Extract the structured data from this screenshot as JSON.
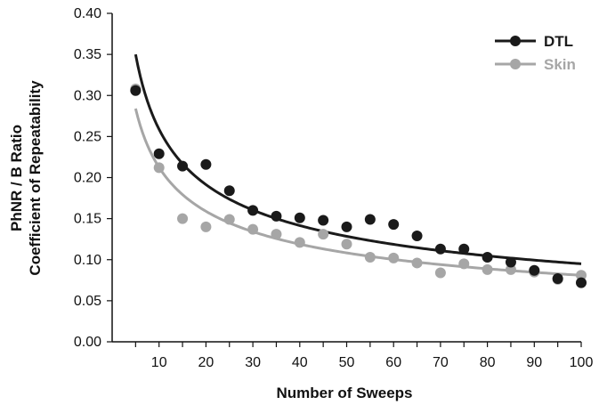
{
  "chart_data": {
    "type": "scatter",
    "title": "",
    "xlabel": "Number of Sweeps",
    "ylabel_lines": [
      "PhNR / B Ratio",
      "Coefficient of Repeatability"
    ],
    "xlim": [
      0,
      100
    ],
    "ylim": [
      0,
      0.4
    ],
    "x_ticks": [
      10,
      20,
      30,
      40,
      50,
      60,
      70,
      80,
      90,
      100
    ],
    "y_ticks": [
      0,
      0.05,
      0.1,
      0.15,
      0.2,
      0.25,
      0.3,
      0.35,
      0.4
    ],
    "y_tick_labels": [
      "0.00",
      "0.05",
      "0.10",
      "0.15",
      "0.20",
      "0.25",
      "0.30",
      "0.35",
      "0.40"
    ],
    "grid": false,
    "legend_position": "top-right",
    "series": [
      {
        "name": "DTL",
        "color": "#1a1a1a",
        "x": [
          5,
          10,
          15,
          20,
          25,
          30,
          35,
          40,
          45,
          50,
          55,
          60,
          65,
          70,
          75,
          80,
          85,
          90,
          95,
          100
        ],
        "y": [
          0.306,
          0.229,
          0.214,
          0.216,
          0.184,
          0.16,
          0.153,
          0.151,
          0.148,
          0.14,
          0.149,
          0.143,
          0.129,
          0.113,
          0.113,
          0.103,
          0.097,
          0.087,
          0.077,
          0.072
        ],
        "fit": {
          "x_start": 5,
          "x_end": 100,
          "y_start": 0.35,
          "y_end": 0.095
        }
      },
      {
        "name": "Skin",
        "color": "#a6a6a6",
        "x": [
          5,
          10,
          15,
          20,
          25,
          30,
          35,
          40,
          45,
          50,
          55,
          60,
          65,
          70,
          75,
          80,
          85,
          90,
          95,
          100
        ],
        "y": [
          0.308,
          0.212,
          0.15,
          0.14,
          0.149,
          0.137,
          0.131,
          0.121,
          0.131,
          0.119,
          0.103,
          0.102,
          0.096,
          0.084,
          0.095,
          0.088,
          0.088,
          0.085,
          0.076,
          0.081
        ],
        "fit": {
          "x_start": 5,
          "x_end": 100,
          "y_start": 0.284,
          "y_end": 0.081
        }
      }
    ]
  }
}
